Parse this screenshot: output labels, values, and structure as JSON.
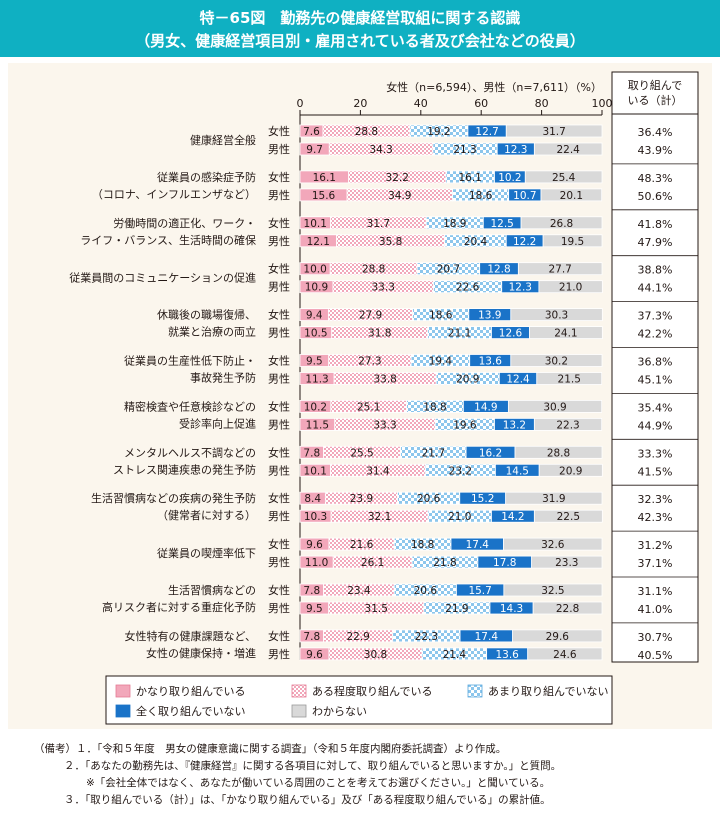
{
  "header": {
    "title": "特－65図　勤務先の健康経営取組に関する認識",
    "subtitle": "（男女、健康経営項目別・雇用されている者及び会社などの役員）"
  },
  "chart_data": {
    "type": "bar",
    "stacked": true,
    "orientation": "horizontal",
    "sample_label": "女性（n=6,594）、男性（n=7,611）（%）",
    "xlim": [
      0,
      100
    ],
    "xticks": [
      "0",
      "20",
      "40",
      "60",
      "80",
      "100"
    ],
    "total_header": "取り組んで\nいる（計）",
    "series_names": [
      "かなり取り組んでいる",
      "ある程度取り組んでいる",
      "あまり取り組んでいない",
      "全く取り組んでいない",
      "わからない"
    ],
    "colors": [
      "#f2a7ba",
      "#f2a7ba",
      "#a5d4f0",
      "#1a73c8",
      "#d9d9d9"
    ],
    "categories": [
      {
        "label": [
          "健康経営全般"
        ],
        "female": [
          7.6,
          28.8,
          19.2,
          12.7,
          31.7
        ],
        "female_total": "36.4%",
        "male": [
          9.7,
          34.3,
          21.3,
          12.3,
          22.4
        ],
        "male_total": "43.9%"
      },
      {
        "label": [
          "従業員の感染症予防",
          "（コロナ、インフルエンザなど）"
        ],
        "female": [
          16.1,
          32.2,
          16.1,
          10.2,
          25.4
        ],
        "female_total": "48.3%",
        "male": [
          15.6,
          34.9,
          18.6,
          10.7,
          20.1
        ],
        "male_total": "50.6%"
      },
      {
        "label": [
          "労働時間の適正化、ワーク・",
          "ライフ・バランス、生活時間の確保"
        ],
        "female": [
          10.1,
          31.7,
          18.9,
          12.5,
          26.8
        ],
        "female_total": "41.8%",
        "male": [
          12.1,
          35.8,
          20.4,
          12.2,
          19.5
        ],
        "male_total": "47.9%"
      },
      {
        "label": [
          "従業員間のコミュニケーションの促進"
        ],
        "female": [
          10.0,
          28.8,
          20.7,
          12.8,
          27.7
        ],
        "female_total": "38.8%",
        "male": [
          10.9,
          33.3,
          22.6,
          12.3,
          21.0
        ],
        "male_total": "44.1%"
      },
      {
        "label": [
          "休職後の職場復帰、",
          "就業と治療の両立"
        ],
        "female": [
          9.4,
          27.9,
          18.6,
          13.9,
          30.3
        ],
        "female_total": "37.3%",
        "male": [
          10.5,
          31.8,
          21.1,
          12.6,
          24.1
        ],
        "male_total": "42.2%"
      },
      {
        "label": [
          "従業員の生産性低下防止・",
          "事故発生予防"
        ],
        "female": [
          9.5,
          27.3,
          19.4,
          13.6,
          30.2
        ],
        "female_total": "36.8%",
        "male": [
          11.3,
          33.8,
          20.9,
          12.4,
          21.5
        ],
        "male_total": "45.1%"
      },
      {
        "label": [
          "精密検査や任意検診などの",
          "受診率向上促進"
        ],
        "female": [
          10.2,
          25.1,
          18.8,
          14.9,
          30.9
        ],
        "female_total": "35.4%",
        "male": [
          11.5,
          33.3,
          19.6,
          13.2,
          22.3
        ],
        "male_total": "44.9%"
      },
      {
        "label": [
          "メンタルヘルス不調などの",
          "ストレス関連疾患の発生予防"
        ],
        "female": [
          7.8,
          25.5,
          21.7,
          16.2,
          28.8
        ],
        "female_total": "33.3%",
        "male": [
          10.1,
          31.4,
          23.2,
          14.5,
          20.9
        ],
        "male_total": "41.5%"
      },
      {
        "label": [
          "生活習慣病などの疾病の発生予防",
          "（健常者に対する）"
        ],
        "female": [
          8.4,
          23.9,
          20.6,
          15.2,
          31.9
        ],
        "female_total": "32.3%",
        "male": [
          10.3,
          32.1,
          21.0,
          14.2,
          22.5
        ],
        "male_total": "42.3%"
      },
      {
        "label": [
          "従業員の喫煙率低下"
        ],
        "female": [
          9.6,
          21.6,
          18.8,
          17.4,
          32.6
        ],
        "female_total": "31.2%",
        "male": [
          11.0,
          26.1,
          21.8,
          17.8,
          23.3
        ],
        "male_total": "37.1%"
      },
      {
        "label": [
          "生活習慣病などの",
          "高リスク者に対する重症化予防"
        ],
        "female": [
          7.8,
          23.4,
          20.6,
          15.7,
          32.5
        ],
        "female_total": "31.1%",
        "male": [
          9.5,
          31.5,
          21.9,
          14.3,
          22.8
        ],
        "male_total": "41.0%"
      },
      {
        "label": [
          "女性特有の健康課題など、",
          "女性の健康保持・増進"
        ],
        "female": [
          7.8,
          22.9,
          22.3,
          17.4,
          29.6
        ],
        "female_total": "30.7%",
        "male": [
          9.6,
          30.8,
          21.4,
          13.6,
          24.6
        ],
        "male_total": "40.5%"
      }
    ],
    "sex_labels": {
      "female": "女性",
      "male": "男性"
    }
  },
  "notes": [
    "（備考）１．「令和５年度　男女の健康意識に関する調査」（令和５年度内閣府委託調査）より作成。",
    "２．「あなたの勤務先は、『健康経営』に関する各項目に対して、取り組んでいると思いますか。」と質問。",
    "※「会社全体ではなく、あなたが働いている周囲のことを考えてお選びください。」と聞いている。",
    "３．「取り組んでいる（計）」は、「かなり取り組んでいる」及び「ある程度取り組んでいる」の累計値。"
  ]
}
